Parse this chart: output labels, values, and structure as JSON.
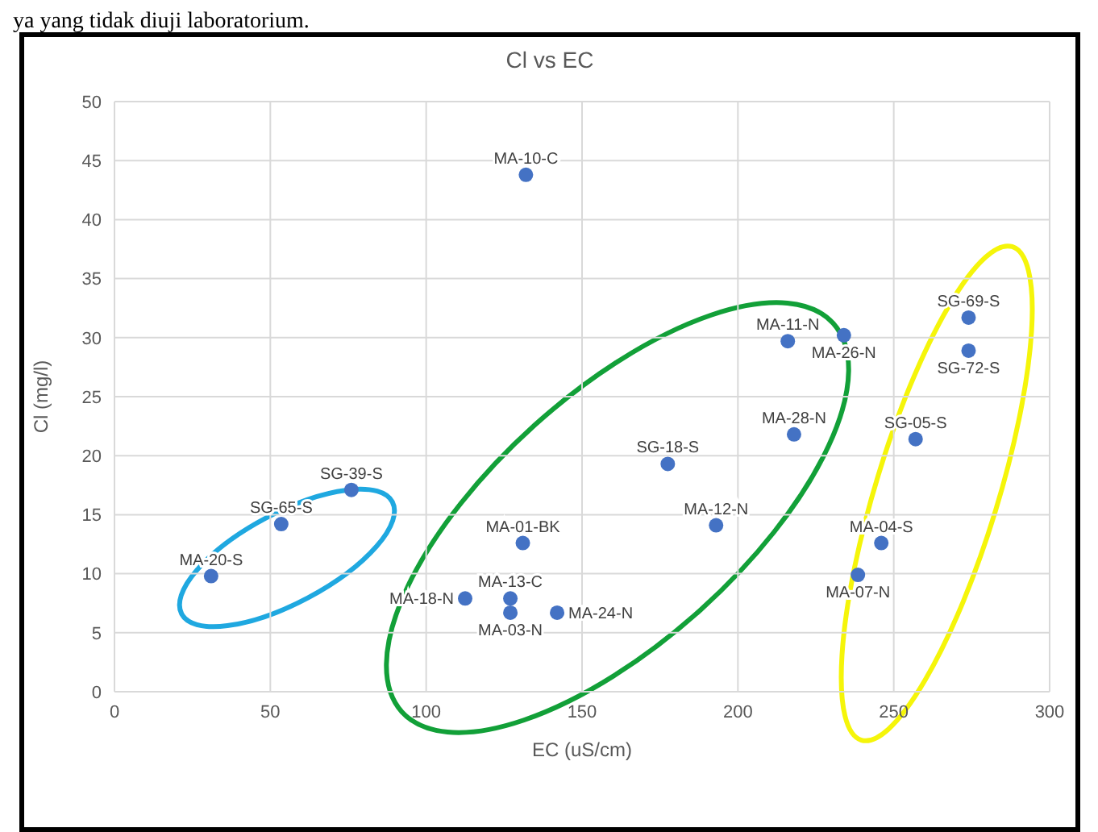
{
  "chart_data": {
    "type": "scatter",
    "title": "Cl vs EC",
    "xlabel": "EC (uS/cm)",
    "ylabel": "Cl (mg/l)",
    "x": [
      31,
      53.5,
      76,
      132,
      131,
      112.5,
      127,
      127,
      142,
      177.5,
      193,
      216,
      234,
      218,
      257,
      274,
      274,
      246,
      238.5
    ],
    "values": [
      9.8,
      14.2,
      17.1,
      43.8,
      12.6,
      7.9,
      7.9,
      6.7,
      6.7,
      19.3,
      14.1,
      29.7,
      30.2,
      21.8,
      21.4,
      31.7,
      28.9,
      12.6,
      9.9
    ],
    "color": "#4472c4",
    "marker": "circle",
    "xlim": [
      0,
      300
    ],
    "xticks": [
      0,
      50,
      100,
      150,
      200,
      250,
      300
    ],
    "ylim": [
      0,
      50
    ],
    "yticks": [
      0,
      5,
      10,
      15,
      20,
      25,
      30,
      35,
      40,
      45,
      50
    ],
    "grid": true,
    "annotations": [
      {
        "text": "MA-20-S",
        "x": 31,
        "y": 9.8
      },
      {
        "text": "SG-65-S",
        "x": 53.5,
        "y": 14.2
      },
      {
        "text": "SG-39-S",
        "x": 76,
        "y": 17.1
      },
      {
        "text": "MA-10-C",
        "x": 132,
        "y": 43.8
      },
      {
        "text": "MA-01-BK",
        "x": 131,
        "y": 12.6
      },
      {
        "text": "MA-18-N",
        "x": 112.5,
        "y": 7.9
      },
      {
        "text": "MA-13-C",
        "x": 127,
        "y": 7.9
      },
      {
        "text": "MA-03-N",
        "x": 127,
        "y": 6.7
      },
      {
        "text": "MA-24-N",
        "x": 142,
        "y": 6.7
      },
      {
        "text": "SG-18-S",
        "x": 177.5,
        "y": 19.3
      },
      {
        "text": "MA-12-N",
        "x": 193,
        "y": 14.1
      },
      {
        "text": "MA-11-N",
        "x": 216,
        "y": 29.7
      },
      {
        "text": "MA-26-N",
        "x": 234,
        "y": 30.2
      },
      {
        "text": "MA-28-N",
        "x": 218,
        "y": 21.8
      },
      {
        "text": "SG-05-S",
        "x": 257,
        "y": 21.4
      },
      {
        "text": "SG-69-S",
        "x": 274,
        "y": 31.7
      },
      {
        "text": "SG-72-S",
        "x": 274,
        "y": 28.9
      },
      {
        "text": "MA-04-S",
        "x": 246,
        "y": 12.6
      },
      {
        "text": "MA-07-N",
        "x": 238.5,
        "y": 9.9
      },
      "ya yang tidak diuji laboratorium."
    ]
  }
}
